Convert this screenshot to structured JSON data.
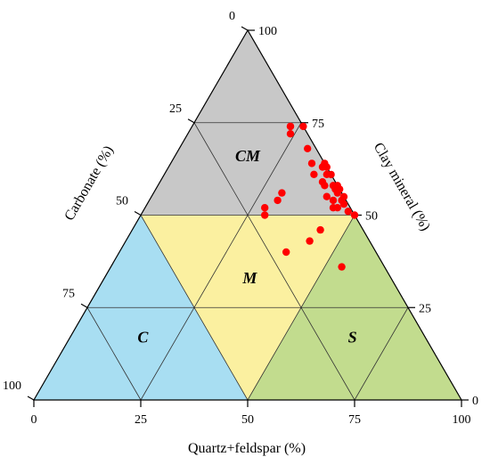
{
  "chart_data": {
    "type": "scatter",
    "subtype": "ternary",
    "axes": {
      "bottom": {
        "label": "Quartz+feldspar (%)",
        "ticks": [
          "0",
          "25",
          "50",
          "75",
          "100"
        ]
      },
      "left": {
        "label": "Carbonate (%)",
        "ticks": [
          "0",
          "25",
          "50",
          "75",
          "100"
        ]
      },
      "right": {
        "label": "Clay mineral (%)",
        "ticks": [
          "100",
          "75",
          "50",
          "25",
          "0"
        ]
      }
    },
    "grid": true,
    "regions": [
      {
        "label": "CM",
        "color": "#c8c8c8"
      },
      {
        "label": "M",
        "color": "#fbf0a0"
      },
      {
        "label": "C",
        "color": "#a8def2"
      },
      {
        "label": "S",
        "color": "#c2dc8e"
      }
    ],
    "marker_color": "#ff0000",
    "points_clay_carbonate_quartz": [
      [
        74,
        3,
        23
      ],
      [
        74,
        0,
        26
      ],
      [
        72,
        4,
        24
      ],
      [
        74,
        3,
        23
      ],
      [
        68,
        2,
        30
      ],
      [
        64,
        0,
        36
      ],
      [
        64,
        3,
        33
      ],
      [
        63,
        0,
        37
      ],
      [
        61,
        0,
        39
      ],
      [
        63,
        1,
        36
      ],
      [
        61,
        4,
        35
      ],
      [
        61,
        1,
        38
      ],
      [
        58,
        0,
        42
      ],
      [
        59,
        3,
        38
      ],
      [
        58,
        1,
        41
      ],
      [
        57,
        0,
        43
      ],
      [
        57,
        1,
        42
      ],
      [
        58,
        3,
        39
      ],
      [
        56,
        1,
        43
      ],
      [
        55,
        0,
        45
      ],
      [
        55,
        4,
        41
      ],
      [
        54,
        1,
        45
      ],
      [
        54,
        3,
        43
      ],
      [
        53,
        1,
        46
      ],
      [
        52,
        4,
        44
      ],
      [
        52,
        3,
        45
      ],
      [
        51,
        1,
        48
      ],
      [
        50,
        0,
        50
      ],
      [
        56,
        14,
        30
      ],
      [
        54,
        16,
        30
      ],
      [
        50,
        21,
        29
      ],
      [
        52,
        20,
        28
      ],
      [
        46,
        10,
        44
      ],
      [
        43,
        14,
        43
      ],
      [
        40,
        21,
        39
      ],
      [
        36,
        10,
        54
      ]
    ]
  }
}
